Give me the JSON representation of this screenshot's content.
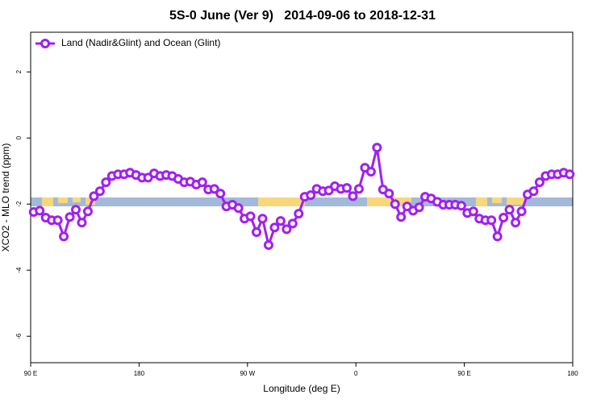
{
  "chart_data": {
    "type": "line",
    "title": "5S-0 June (Ver 9)   2014-09-06 to 2018-12-31",
    "xlabel": "Longitude (deg E)",
    "ylabel": "XCO2 - MLO trend (ppm)",
    "xlim": [
      90,
      540
    ],
    "xticks": [
      {
        "value": 90,
        "label": "90 E"
      },
      {
        "value": 180,
        "label": "180"
      },
      {
        "value": 270,
        "label": "90 W"
      },
      {
        "value": 360,
        "label": "0"
      },
      {
        "value": 450,
        "label": "90 E"
      },
      {
        "value": 540,
        "label": "180"
      }
    ],
    "ylim": [
      -6.8,
      3.2
    ],
    "yticks": [
      2,
      0,
      -2,
      -4,
      -6
    ],
    "legend": "upper left",
    "x": [
      92.5,
      97.5,
      102.5,
      107.5,
      112.5,
      117.5,
      122.5,
      127.5,
      132.5,
      137.5,
      142.5,
      147.5,
      152.5,
      157.5,
      162.5,
      167.5,
      172.5,
      177.5,
      182.5,
      187.5,
      192.5,
      197.5,
      202.5,
      207.5,
      212.5,
      217.5,
      222.5,
      227.5,
      232.5,
      237.5,
      242.5,
      247.5,
      252.5,
      257.5,
      262.5,
      267.5,
      272.5,
      277.5,
      282.5,
      287.5,
      292.5,
      297.5,
      302.5,
      307.5,
      312.5,
      317.5,
      322.5,
      327.5,
      332.5,
      337.5,
      342.5,
      347.5,
      352.5,
      357.5,
      362.5,
      367.5,
      372.5,
      377.5,
      382.5,
      387.5,
      392.5,
      397.5,
      402.5,
      407.5,
      412.5,
      417.5,
      422.5,
      427.5,
      432.5,
      437.5,
      442.5,
      447.5,
      452.5,
      457.5,
      462.5,
      467.5,
      472.5,
      477.5,
      482.5,
      487.5,
      492.5,
      497.5,
      502.5,
      507.5,
      512.5,
      517.5,
      522.5,
      527.5,
      532.5,
      537.5
    ],
    "series": [
      {
        "name": "Land (Nadir&Glint) and Ocean (Glint)",
        "color": "#a020f0",
        "values": [
          -2.24,
          -2.2,
          -2.41,
          -2.49,
          -2.49,
          -2.98,
          -2.39,
          -2.17,
          -2.56,
          -2.22,
          -1.76,
          -1.61,
          -1.34,
          -1.15,
          -1.1,
          -1.1,
          -1.05,
          -1.12,
          -1.2,
          -1.2,
          -1.07,
          -1.15,
          -1.12,
          -1.15,
          -1.24,
          -1.34,
          -1.32,
          -1.41,
          -1.34,
          -1.56,
          -1.54,
          -1.68,
          -2.07,
          -2.02,
          -2.12,
          -2.44,
          -2.37,
          -2.85,
          -2.44,
          -3.24,
          -2.71,
          -2.51,
          -2.76,
          -2.59,
          -2.29,
          -1.78,
          -1.73,
          -1.54,
          -1.61,
          -1.59,
          -1.46,
          -1.54,
          -1.51,
          -1.76,
          -1.54,
          -0.9,
          -1.02,
          -0.29,
          -1.56,
          -1.68,
          -2.0,
          -2.39,
          -2.07,
          -2.2,
          -2.1,
          -1.78,
          -1.83,
          -1.93,
          -2.02,
          -2.02,
          -2.02,
          -2.05,
          -2.27,
          -2.22,
          -2.44,
          -2.49,
          -2.49,
          -2.98,
          -2.41,
          -2.17,
          -2.56,
          -2.22,
          -1.71,
          -1.61,
          -1.34,
          -1.15,
          -1.1,
          -1.1,
          -1.05,
          -1.1
        ]
      }
    ]
  }
}
